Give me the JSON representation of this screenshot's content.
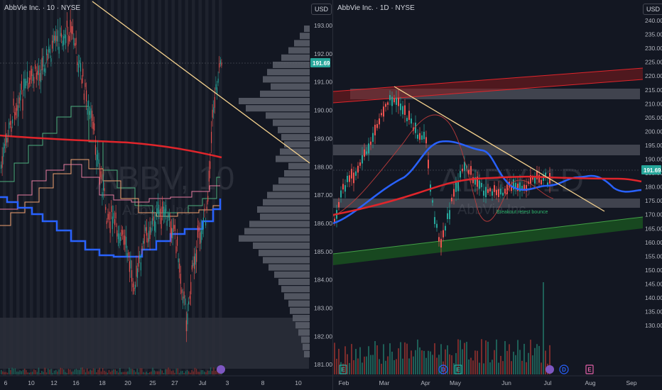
{
  "left": {
    "title": "AbbVie Inc. · 10 · NYSE",
    "currency": "USD",
    "watermark_symbol": "ABBV, 10",
    "watermark_name": "AbbVie Inc.",
    "current_price": "191.69",
    "price_ticks": [
      "193.00",
      "192.00",
      "191.00",
      "190.00",
      "189.00",
      "188.00",
      "187.00",
      "186.00",
      "185.00",
      "184.00",
      "183.00",
      "182.00",
      "181.00"
    ],
    "time_ticks": [
      "6",
      "10",
      "12",
      "16",
      "18",
      "20",
      "25",
      "27",
      "Jul",
      "3",
      "8",
      "10"
    ]
  },
  "right": {
    "title": "AbbVie Inc. · 1D · NYSE",
    "currency": "USD",
    "watermark_symbol": "ABBV, 1D",
    "watermark_name": "AbbVie Inc.",
    "current_price": "191.69",
    "annotation": "Breakout retest bounce",
    "price_ticks": [
      "240.00",
      "235.00",
      "230.00",
      "225.00",
      "220.00",
      "215.00",
      "210.00",
      "205.00",
      "200.00",
      "195.00",
      "190.00",
      "185.00",
      "180.00",
      "175.00",
      "170.00",
      "165.00",
      "160.00",
      "155.00",
      "150.00",
      "145.00",
      "140.00",
      "135.00",
      "130.00"
    ],
    "time_ticks": [
      "Feb",
      "Mar",
      "Apr",
      "May",
      "Jun",
      "Jul",
      "Aug",
      "Sep"
    ],
    "events": [
      "E",
      "D",
      "E",
      "D",
      "E"
    ]
  },
  "chart_data": [
    {
      "type": "line",
      "title": "AbbVie Inc. · 10 · NYSE",
      "ylim": [
        180.7,
        193.6
      ],
      "x": [
        "6",
        "10",
        "12",
        "16",
        "18",
        "20",
        "25",
        "27",
        "Jul",
        "3"
      ],
      "series": [
        {
          "values": [
            187.4,
            188.6,
            190.8,
            191.9,
            187.7,
            185.2,
            183.7,
            185.1,
            182.3,
            191.7
          ]
        }
      ],
      "volume_profile_range": [
        181.0,
        193.0
      ],
      "grid": false
    },
    {
      "type": "line",
      "title": "AbbVie Inc. · 1D · NYSE",
      "ylim": [
        127,
        242
      ],
      "x": [
        "Feb",
        "Mar",
        "Apr",
        "May",
        "Jun",
        "Jul"
      ],
      "series": [
        {
          "values": [
            175,
            183,
            209,
            168,
            186,
            191.7
          ]
        }
      ],
      "grid": false
    }
  ]
}
